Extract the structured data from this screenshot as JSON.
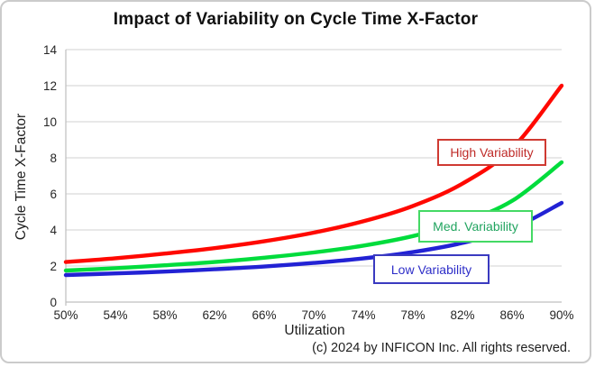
{
  "chart_data": {
    "type": "line",
    "title": "Impact of Variability on Cycle Time X-Factor",
    "xlabel": "Utilization",
    "ylabel": "Cycle Time X-Factor",
    "xlim": [
      50,
      90
    ],
    "ylim": [
      0,
      14
    ],
    "grid": "horizontal",
    "legend_position": "on-chart text boxes",
    "x_values": [
      50,
      54,
      58,
      62,
      66,
      70,
      74,
      78,
      82,
      86,
      90
    ],
    "x_tick_labels": [
      "50%",
      "54%",
      "58%",
      "62%",
      "66%",
      "70%",
      "74%",
      "78%",
      "82%",
      "86%",
      "90%"
    ],
    "y_ticks": [
      0,
      2,
      4,
      6,
      8,
      10,
      12,
      14
    ],
    "series": [
      {
        "name": "High Variability",
        "line_color": "#ff0800",
        "label_text_color": "#bf2b28",
        "label_border_color": "#cf3a32",
        "values": [
          2.22,
          2.43,
          2.69,
          2.99,
          3.37,
          3.85,
          4.48,
          5.33,
          6.57,
          8.51,
          12.0
        ]
      },
      {
        "name": "Med. Variability",
        "line_color": "#00dc3c",
        "label_text_color": "#21a45f",
        "label_border_color": "#44d964",
        "values": [
          1.75,
          1.88,
          2.04,
          2.22,
          2.46,
          2.75,
          3.13,
          3.66,
          4.42,
          5.61,
          7.75
        ]
      },
      {
        "name": "Low Variability",
        "line_color": "#2222d4",
        "label_text_color": "#2e2ec8",
        "label_border_color": "#3a3ac0",
        "values": [
          1.5,
          1.59,
          1.69,
          1.82,
          1.97,
          2.17,
          2.42,
          2.77,
          3.28,
          4.07,
          5.5
        ]
      }
    ],
    "colors": {
      "gridline": "#d9d9d9",
      "axis_line": "#bfbfbf",
      "tick_label": "#262626"
    }
  },
  "footer": {
    "copyright": "(c) 2024 by INFICON Inc. All rights reserved."
  }
}
